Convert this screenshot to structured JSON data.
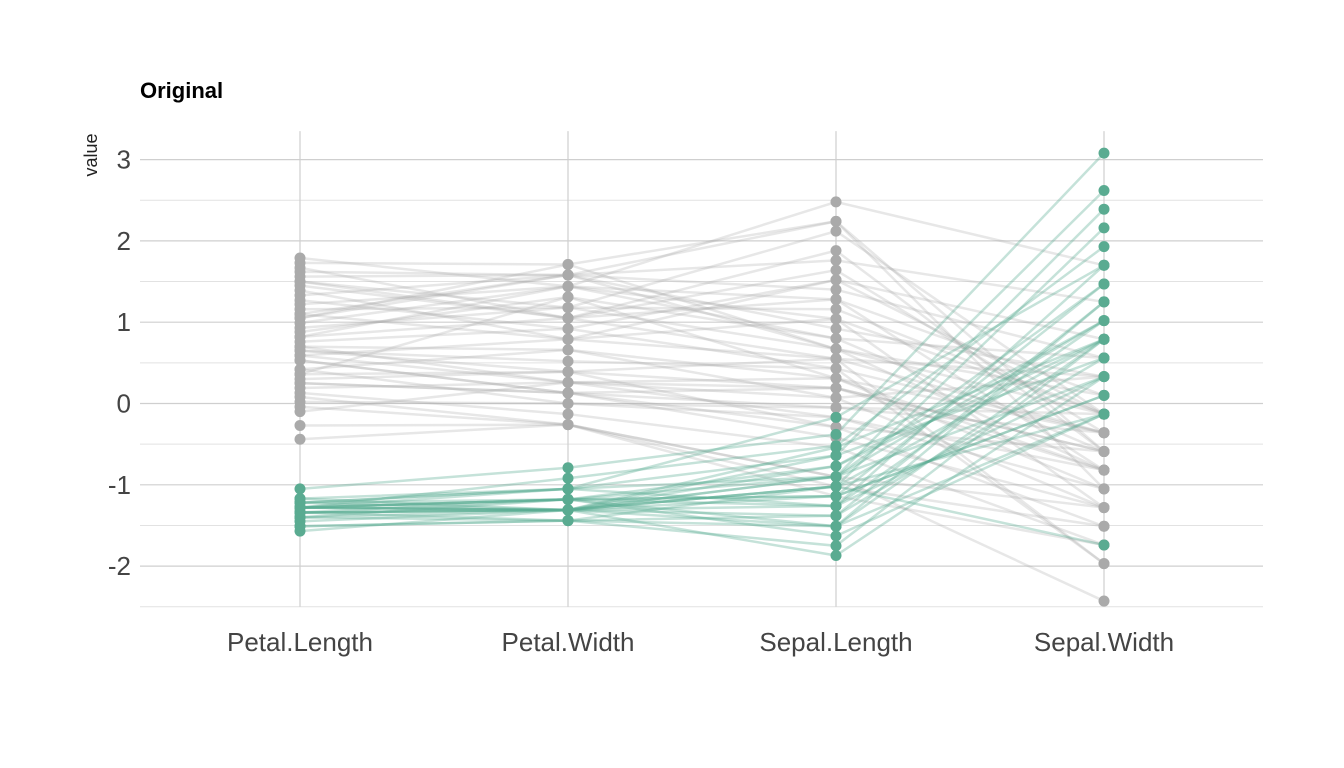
{
  "chart_data": {
    "type": "parallel_coordinates",
    "title": "Original",
    "xlabel": "",
    "ylabel": "value",
    "categories": [
      "Petal.Length",
      "Petal.Width",
      "Sepal.Length",
      "Sepal.Width"
    ],
    "y_ticks": [
      3,
      2,
      1,
      0,
      -1,
      -2
    ],
    "y_tick_labels": [
      "3",
      "2",
      "1",
      "0",
      "-1",
      "-2"
    ],
    "ylim": [
      -2.5,
      3.35
    ],
    "grid": true,
    "legend": "none",
    "colors": {
      "highlight": "#5aab91",
      "other": "#aaaaaa"
    },
    "series": [
      {
        "group": "highlight",
        "values": [
          -1.05,
          -0.79,
          -0.38,
          3.08
        ]
      },
      {
        "group": "highlight",
        "values": [
          -1.22,
          -1.05,
          -0.64,
          2.62
        ]
      },
      {
        "group": "highlight",
        "values": [
          -1.28,
          -1.18,
          -0.9,
          2.39
        ]
      },
      {
        "group": "highlight",
        "values": [
          -1.34,
          -1.31,
          -1.02,
          2.16
        ]
      },
      {
        "group": "highlight",
        "values": [
          -1.28,
          -0.92,
          -0.52,
          1.93
        ]
      },
      {
        "group": "highlight",
        "values": [
          -1.17,
          -1.05,
          -0.17,
          1.7
        ]
      },
      {
        "group": "highlight",
        "values": [
          -1.4,
          -1.31,
          -0.9,
          1.47
        ]
      },
      {
        "group": "highlight",
        "values": [
          -1.28,
          -1.18,
          -1.14,
          1.47
        ]
      },
      {
        "group": "highlight",
        "values": [
          -1.51,
          -1.44,
          -1.51,
          1.25
        ]
      },
      {
        "group": "highlight",
        "values": [
          -1.34,
          -1.31,
          -1.26,
          1.02
        ]
      },
      {
        "group": "highlight",
        "values": [
          -1.28,
          -1.31,
          -0.9,
          1.02
        ]
      },
      {
        "group": "highlight",
        "values": [
          -1.22,
          -1.18,
          -0.77,
          0.79
        ]
      },
      {
        "group": "highlight",
        "values": [
          -1.4,
          -1.44,
          -1.75,
          0.79
        ]
      },
      {
        "group": "highlight",
        "values": [
          -1.28,
          -1.31,
          -1.02,
          0.79
        ]
      },
      {
        "group": "highlight",
        "values": [
          -1.17,
          -1.31,
          -0.64,
          0.56
        ]
      },
      {
        "group": "highlight",
        "values": [
          -1.34,
          -1.44,
          -1.38,
          0.56
        ]
      },
      {
        "group": "highlight",
        "values": [
          -1.57,
          -1.31,
          -1.87,
          0.33
        ]
      },
      {
        "group": "highlight",
        "values": [
          -1.22,
          -1.05,
          -1.26,
          0.33
        ]
      },
      {
        "group": "highlight",
        "values": [
          -1.28,
          -1.31,
          -1.14,
          0.1
        ]
      },
      {
        "group": "highlight",
        "values": [
          -1.34,
          -1.18,
          -1.63,
          -0.13
        ]
      },
      {
        "group": "highlight",
        "values": [
          -1.45,
          -1.31,
          -1.51,
          -0.13
        ]
      },
      {
        "group": "highlight",
        "values": [
          -1.28,
          -1.31,
          -1.02,
          -0.13
        ]
      },
      {
        "group": "highlight",
        "values": [
          -1.28,
          -1.18,
          -1.26,
          1.7
        ]
      },
      {
        "group": "highlight",
        "values": [
          -1.34,
          -1.31,
          -0.77,
          1.02
        ]
      },
      {
        "group": "highlight",
        "values": [
          -1.22,
          -1.31,
          -0.54,
          0.79
        ]
      },
      {
        "group": "highlight",
        "values": [
          -1.4,
          -1.18,
          -1.14,
          0.1
        ]
      },
      {
        "group": "highlight",
        "values": [
          -1.28,
          -1.05,
          -0.9,
          0.33
        ]
      },
      {
        "group": "highlight",
        "values": [
          -1.51,
          -1.44,
          -1.02,
          -1.74
        ]
      },
      {
        "group": "highlight",
        "values": [
          -1.34,
          -1.31,
          -1.38,
          1.25
        ]
      },
      {
        "group": "highlight",
        "values": [
          -1.28,
          -1.18,
          -1.51,
          0.79
        ]
      },
      {
        "group": "other",
        "values": [
          1.79,
          1.44,
          2.48,
          1.7
        ]
      },
      {
        "group": "other",
        "values": [
          1.73,
          1.71,
          2.24,
          -0.59
        ]
      },
      {
        "group": "other",
        "values": [
          1.62,
          1.58,
          2.24,
          -1.05
        ]
      },
      {
        "group": "other",
        "values": [
          1.5,
          1.18,
          2.12,
          -0.13
        ]
      },
      {
        "group": "other",
        "values": [
          1.67,
          1.05,
          1.88,
          -0.59
        ]
      },
      {
        "group": "other",
        "values": [
          1.56,
          1.58,
          1.76,
          1.25
        ]
      },
      {
        "group": "other",
        "values": [
          1.45,
          1.05,
          1.64,
          -0.36
        ]
      },
      {
        "group": "other",
        "values": [
          1.39,
          0.79,
          1.52,
          -0.13
        ]
      },
      {
        "group": "other",
        "values": [
          1.33,
          1.58,
          1.4,
          0.56
        ]
      },
      {
        "group": "other",
        "values": [
          1.22,
          1.44,
          1.28,
          0.1
        ]
      },
      {
        "group": "other",
        "values": [
          1.16,
          1.18,
          1.16,
          -0.13
        ]
      },
      {
        "group": "other",
        "values": [
          1.1,
          0.79,
          1.04,
          -1.28
        ]
      },
      {
        "group": "other",
        "values": [
          1.05,
          1.58,
          0.92,
          0.33
        ]
      },
      {
        "group": "other",
        "values": [
          0.99,
          1.44,
          0.8,
          -0.59
        ]
      },
      {
        "group": "other",
        "values": [
          0.93,
          1.18,
          0.67,
          -0.82
        ]
      },
      {
        "group": "other",
        "values": [
          0.82,
          1.05,
          0.55,
          -1.97
        ]
      },
      {
        "group": "other",
        "values": [
          0.76,
          0.92,
          0.43,
          -0.36
        ]
      },
      {
        "group": "other",
        "values": [
          0.7,
          0.66,
          0.31,
          -0.82
        ]
      },
      {
        "group": "other",
        "values": [
          0.65,
          0.39,
          0.19,
          -0.59
        ]
      },
      {
        "group": "other",
        "values": [
          0.59,
          0.26,
          0.07,
          -1.28
        ]
      },
      {
        "group": "other",
        "values": [
          0.53,
          0.13,
          -0.05,
          -0.13
        ]
      },
      {
        "group": "other",
        "values": [
          0.42,
          0.0,
          -0.17,
          -1.05
        ]
      },
      {
        "group": "other",
        "values": [
          0.36,
          1.31,
          0.31,
          -0.36
        ]
      },
      {
        "group": "other",
        "values": [
          0.3,
          0.39,
          -0.29,
          -1.51
        ]
      },
      {
        "group": "other",
        "values": [
          0.25,
          0.13,
          -0.42,
          -1.28
        ]
      },
      {
        "group": "other",
        "values": [
          0.13,
          -0.13,
          -0.54,
          -1.74
        ]
      },
      {
        "group": "other",
        "values": [
          0.08,
          -0.26,
          -0.9,
          -2.43
        ]
      },
      {
        "group": "other",
        "values": [
          -0.04,
          -0.26,
          -1.02,
          -1.51
        ]
      },
      {
        "group": "other",
        "values": [
          -0.1,
          0.26,
          -0.17,
          -0.82
        ]
      },
      {
        "group": "other",
        "values": [
          -0.27,
          -0.26,
          -1.14,
          -1.74
        ]
      },
      {
        "group": "other",
        "values": [
          -0.44,
          -0.26,
          -0.9,
          -1.28
        ]
      },
      {
        "group": "other",
        "values": [
          1.05,
          1.71,
          0.67,
          0.1
        ]
      },
      {
        "group": "other",
        "values": [
          0.82,
          1.44,
          1.04,
          -0.13
        ]
      },
      {
        "group": "other",
        "values": [
          0.59,
          0.79,
          0.55,
          -0.36
        ]
      },
      {
        "group": "other",
        "values": [
          0.42,
          0.66,
          0.07,
          0.33
        ]
      },
      {
        "group": "other",
        "values": [
          0.25,
          0.13,
          -0.29,
          -0.59
        ]
      },
      {
        "group": "other",
        "values": [
          1.27,
          0.92,
          1.52,
          0.79
        ]
      },
      {
        "group": "other",
        "values": [
          0.65,
          0.52,
          0.43,
          -1.97
        ]
      },
      {
        "group": "other",
        "values": [
          0.19,
          0.26,
          0.19,
          -0.82
        ]
      },
      {
        "group": "other",
        "values": [
          0.88,
          1.31,
          0.8,
          0.56
        ]
      },
      {
        "group": "other",
        "values": [
          0.36,
          0.39,
          0.55,
          0.33
        ]
      },
      {
        "group": "other",
        "values": [
          1.5,
          1.05,
          1.28,
          -0.82
        ]
      },
      {
        "group": "other",
        "values": [
          0.7,
          0.26,
          0.31,
          -1.05
        ]
      },
      {
        "group": "other",
        "values": [
          0.02,
          0.0,
          -0.05,
          -0.36
        ]
      },
      {
        "group": "other",
        "values": [
          1.1,
          1.58,
          0.67,
          -0.13
        ]
      },
      {
        "group": "other",
        "values": [
          0.53,
          0.13,
          0.19,
          -0.59
        ]
      }
    ]
  }
}
